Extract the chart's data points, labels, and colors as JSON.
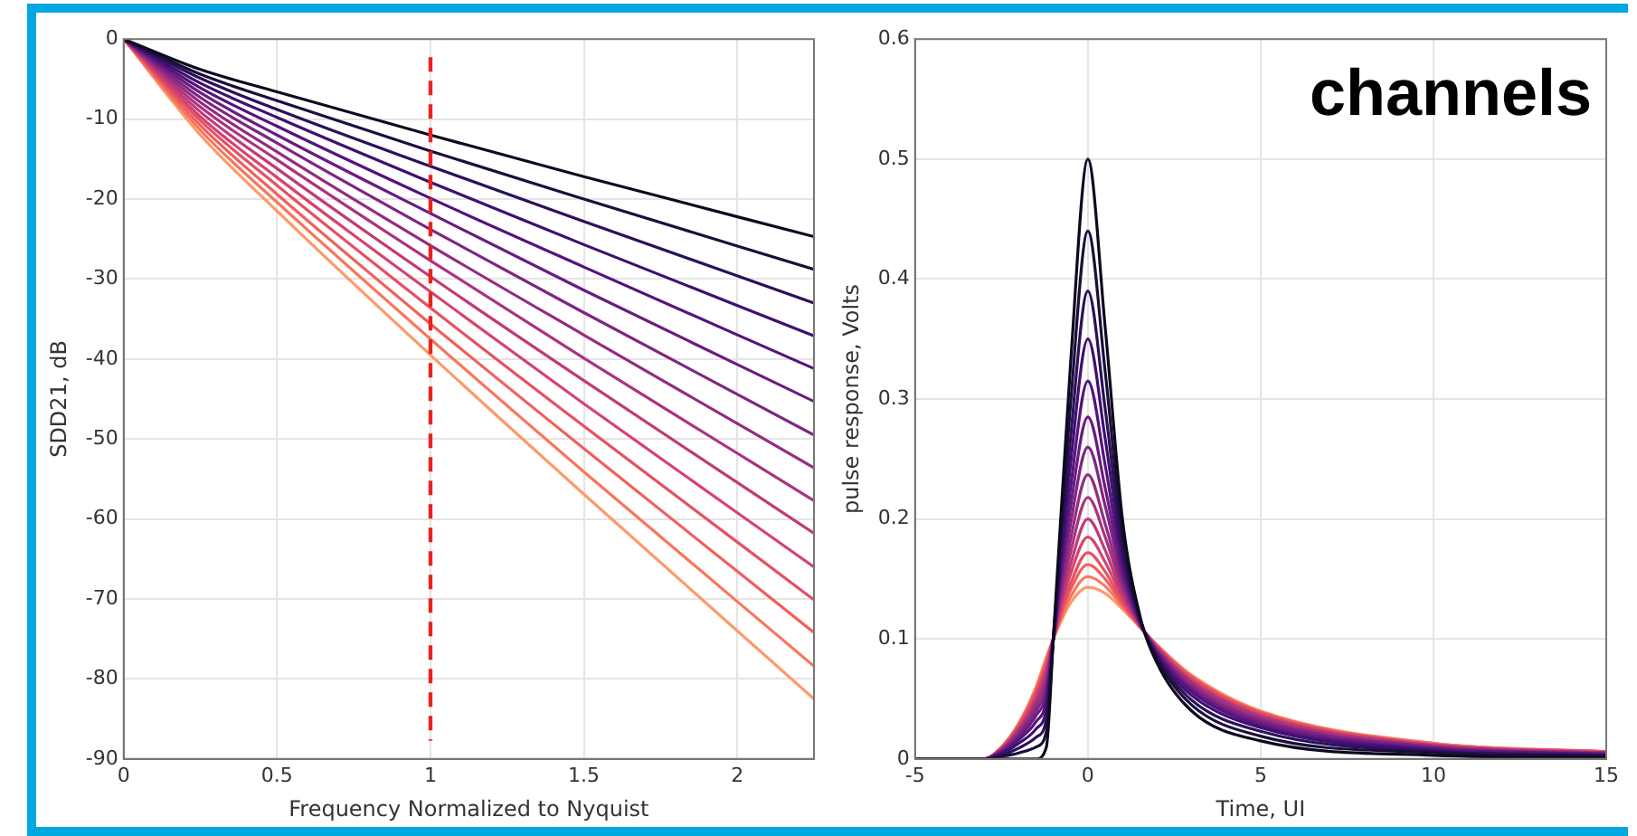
{
  "chart_data": [
    {
      "type": "line",
      "xlabel": "Frequency Normalized to Nyquist",
      "ylabel": "SDD21, dB",
      "x": [
        0,
        0.25,
        0.5,
        1,
        1.5,
        2.25
      ],
      "xlim": [
        0,
        2.25
      ],
      "xticks": [
        0,
        0.5,
        1,
        1.5,
        2
      ],
      "ylim": [
        -90,
        0
      ],
      "yticks": [
        -90,
        -80,
        -70,
        -60,
        -50,
        -40,
        -30,
        -20,
        -10,
        0
      ],
      "grid": true,
      "legend": false,
      "marker": "none",
      "line_style": "solid",
      "ref_lines": [
        {
          "axis": "x",
          "value": 1,
          "color": "#e8231f",
          "line_style": "dashed"
        }
      ],
      "series": [
        {
          "color": "#0d0a1e",
          "values": [
            0,
            -3.8,
            -6.6,
            -12,
            -17.2,
            -24.7
          ]
        },
        {
          "color": "#1b0f3a",
          "values": [
            0,
            -4.4,
            -7.7,
            -14,
            -20,
            -28.8
          ]
        },
        {
          "color": "#2c1158",
          "values": [
            0,
            -4.9,
            -8.8,
            -15.9,
            -22.8,
            -33
          ]
        },
        {
          "color": "#3f0f72",
          "values": [
            0,
            -5.5,
            -9.8,
            -17.9,
            -25.7,
            -37.1
          ]
        },
        {
          "color": "#55137d",
          "values": [
            0,
            -6.1,
            -10.9,
            -19.9,
            -28.5,
            -41.2
          ]
        },
        {
          "color": "#6a1c81",
          "values": [
            0,
            -6.7,
            -12,
            -21.8,
            -31.4,
            -45.3
          ]
        },
        {
          "color": "#7f2582",
          "values": [
            0,
            -7.3,
            -13,
            -23.8,
            -34.2,
            -49.5
          ]
        },
        {
          "color": "#942c80",
          "values": [
            0,
            -7.9,
            -14.1,
            -25.8,
            -37,
            -53.6
          ]
        },
        {
          "color": "#aa337d",
          "values": [
            0,
            -8.5,
            -15.1,
            -27.7,
            -39.9,
            -57.7
          ]
        },
        {
          "color": "#c03a76",
          "values": [
            0,
            -9.1,
            -16.2,
            -29.7,
            -42.7,
            -61.8
          ]
        },
        {
          "color": "#d5446d",
          "values": [
            0,
            -9.7,
            -17.3,
            -31.6,
            -45.6,
            -66
          ]
        },
        {
          "color": "#e55064",
          "values": [
            0,
            -10.2,
            -18.3,
            -33.6,
            -48.4,
            -70.1
          ]
        },
        {
          "color": "#f0605d",
          "values": [
            0,
            -10.8,
            -19.4,
            -35.6,
            -51.2,
            -74.2
          ]
        },
        {
          "color": "#f8765c",
          "values": [
            0,
            -11.4,
            -20.4,
            -37.5,
            -54.1,
            -78.4
          ]
        },
        {
          "color": "#fc9a6a",
          "values": [
            0,
            -12,
            -21.5,
            -39.5,
            -56.9,
            -82.5
          ]
        }
      ]
    },
    {
      "type": "line",
      "xlabel": "Time, UI",
      "ylabel": "pulse response, Volts",
      "annotations": [
        "channels"
      ],
      "x": [
        -5,
        -3,
        -2.5,
        -2,
        -1.5,
        -1.2,
        -1,
        -0.5,
        0,
        0.5,
        1,
        1.5,
        2,
        3,
        5,
        10,
        15
      ],
      "xlim": [
        -5,
        15
      ],
      "xticks": [
        -5,
        0,
        5,
        10,
        15
      ],
      "ylim": [
        0,
        0.6
      ],
      "yticks": [
        0,
        0.1,
        0.2,
        0.3,
        0.4,
        0.5,
        0.6
      ],
      "grid": true,
      "legend": false,
      "marker": "none",
      "line_style": "solid",
      "series": [
        {
          "color": "#0d0a1e",
          "values": [
            0,
            0,
            0,
            0,
            0,
            0.01,
            0.1,
            0.33,
            0.5,
            0.36,
            0.2,
            0.12,
            0.08,
            0.04,
            0.015,
            0.003,
            0.001
          ]
        },
        {
          "color": "#1b0f3a",
          "values": [
            0,
            0,
            0.002,
            0.005,
            0.01,
            0.023,
            0.1,
            0.296,
            0.44,
            0.323,
            0.187,
            0.118,
            0.083,
            0.045,
            0.019,
            0.005,
            0.002
          ]
        },
        {
          "color": "#2c1158",
          "values": [
            0,
            0,
            0.003,
            0.009,
            0.018,
            0.033,
            0.1,
            0.268,
            0.39,
            0.292,
            0.177,
            0.117,
            0.085,
            0.049,
            0.023,
            0.006,
            0.003
          ]
        },
        {
          "color": "#3f0f72",
          "values": [
            0,
            0,
            0.004,
            0.013,
            0.025,
            0.042,
            0.1,
            0.246,
            0.35,
            0.267,
            0.169,
            0.116,
            0.086,
            0.053,
            0.026,
            0.007,
            0.003
          ]
        },
        {
          "color": "#55137d",
          "values": [
            0,
            0,
            0.005,
            0.016,
            0.031,
            0.049,
            0.1,
            0.226,
            0.315,
            0.245,
            0.161,
            0.115,
            0.088,
            0.056,
            0.028,
            0.008,
            0.004
          ]
        },
        {
          "color": "#6a1c81",
          "values": [
            0,
            0,
            0.006,
            0.018,
            0.036,
            0.055,
            0.1,
            0.21,
            0.285,
            0.226,
            0.155,
            0.114,
            0.089,
            0.058,
            0.03,
            0.009,
            0.004
          ]
        },
        {
          "color": "#7f2582",
          "values": [
            0,
            0,
            0.007,
            0.02,
            0.04,
            0.06,
            0.1,
            0.196,
            0.26,
            0.211,
            0.15,
            0.113,
            0.09,
            0.06,
            0.032,
            0.01,
            0.004
          ]
        },
        {
          "color": "#942c80",
          "values": [
            0,
            0,
            0.007,
            0.022,
            0.044,
            0.065,
            0.1,
            0.183,
            0.237,
            0.196,
            0.145,
            0.113,
            0.091,
            0.062,
            0.033,
            0.01,
            0.005
          ]
        },
        {
          "color": "#aa337d",
          "values": [
            0,
            0,
            0.008,
            0.024,
            0.047,
            0.069,
            0.1,
            0.172,
            0.218,
            0.185,
            0.141,
            0.112,
            0.092,
            0.064,
            0.035,
            0.011,
            0.005
          ]
        },
        {
          "color": "#c03a76",
          "values": [
            0,
            0,
            0.008,
            0.025,
            0.05,
            0.073,
            0.1,
            0.162,
            0.2,
            0.174,
            0.137,
            0.112,
            0.093,
            0.065,
            0.036,
            0.011,
            0.005
          ]
        },
        {
          "color": "#d5446d",
          "values": [
            0,
            0,
            0.009,
            0.026,
            0.053,
            0.076,
            0.1,
            0.154,
            0.185,
            0.164,
            0.134,
            0.111,
            0.093,
            0.066,
            0.037,
            0.012,
            0.005
          ]
        },
        {
          "color": "#e55064",
          "values": [
            0,
            0,
            0.009,
            0.028,
            0.055,
            0.079,
            0.1,
            0.146,
            0.172,
            0.156,
            0.131,
            0.111,
            0.094,
            0.068,
            0.038,
            0.012,
            0.006
          ]
        },
        {
          "color": "#f0605d",
          "values": [
            0,
            0,
            0.009,
            0.028,
            0.057,
            0.081,
            0.1,
            0.141,
            0.162,
            0.15,
            0.129,
            0.111,
            0.094,
            0.068,
            0.039,
            0.012,
            0.006
          ]
        },
        {
          "color": "#f8765c",
          "values": [
            0,
            0,
            0.01,
            0.029,
            0.059,
            0.083,
            0.1,
            0.135,
            0.152,
            0.144,
            0.127,
            0.11,
            0.095,
            0.069,
            0.039,
            0.013,
            0.006
          ]
        },
        {
          "color": "#fc9a6a",
          "values": [
            0,
            0,
            0.01,
            0.03,
            0.06,
            0.085,
            0.1,
            0.13,
            0.143,
            0.138,
            0.125,
            0.11,
            0.095,
            0.07,
            0.04,
            0.013,
            0.006
          ]
        }
      ]
    }
  ]
}
